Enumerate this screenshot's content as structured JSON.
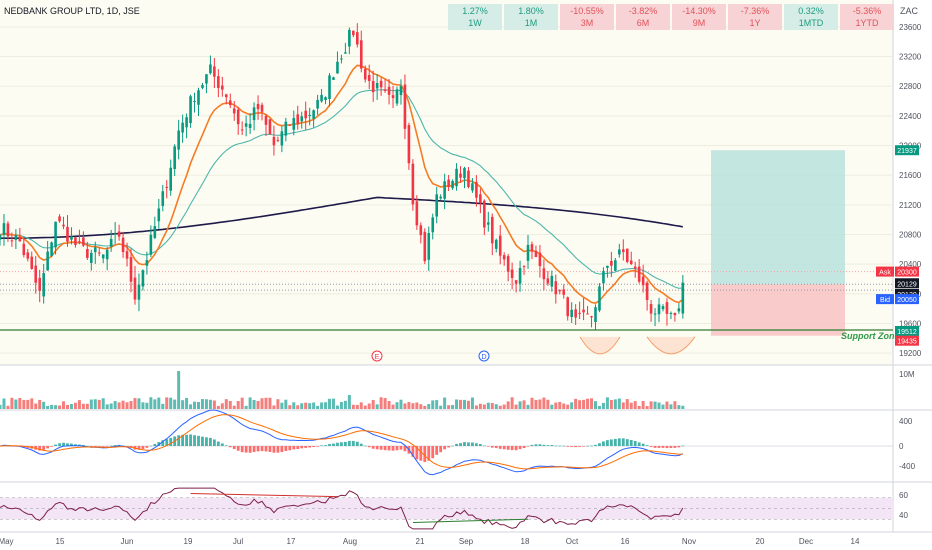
{
  "header": {
    "symbol_title": "NEDBANK GROUP LTD, 1D, JSE",
    "currency": "ZAC"
  },
  "performance": [
    {
      "value": "1.27%",
      "period": "1W",
      "dir": "pos"
    },
    {
      "value": "1.80%",
      "period": "1M",
      "dir": "pos"
    },
    {
      "value": "-10.55%",
      "period": "3M",
      "dir": "neg"
    },
    {
      "value": "-3.82%",
      "period": "6M",
      "dir": "neg"
    },
    {
      "value": "-14.30%",
      "period": "9M",
      "dir": "neg"
    },
    {
      "value": "-7.36%",
      "period": "1Y",
      "dir": "neg"
    },
    {
      "value": "0.32%",
      "period": "1MTD",
      "dir": "pos"
    },
    {
      "value": "-5.36%",
      "period": "1YTD",
      "dir": "neg"
    }
  ],
  "chart_data": {
    "type": "candlestick",
    "price_axis": {
      "ticks": [
        "23600",
        "23200",
        "22800",
        "22400",
        "22000",
        "21600",
        "21200",
        "20800",
        "20400",
        "20000",
        "19600",
        "19200"
      ],
      "ylim": [
        19040,
        23720
      ]
    },
    "date_axis": {
      "ticks": [
        "May",
        "15",
        "Jun",
        "19",
        "Jul",
        "17",
        "Aug",
        "21",
        "Sep",
        "18",
        "Oct",
        "16",
        "Nov",
        "20",
        "Dec",
        "14"
      ]
    },
    "price_labels": [
      {
        "name": "",
        "value": "21937",
        "color": "#089981"
      },
      {
        "name": "Ask",
        "value": "20300",
        "color": "#f23645"
      },
      {
        "name": "",
        "value": "20129",
        "color": "#131722"
      },
      {
        "name": "",
        "value": "20120",
        "color": "#131722"
      },
      {
        "name": "Bid",
        "value": "20050",
        "color": "#2962ff"
      },
      {
        "name": "",
        "value": "19512",
        "color": "#089981"
      },
      {
        "name": "",
        "value": "19435",
        "color": "#f23645"
      }
    ],
    "support": {
      "label": "Support Zone",
      "value": 19512
    },
    "position": {
      "entry": 20129,
      "target": 21937,
      "stop": 19435
    },
    "events": [
      "E",
      "D"
    ],
    "anchors": [
      [
        0,
        20900
      ],
      [
        5,
        20700
      ],
      [
        10,
        20000
      ],
      [
        14,
        21000
      ],
      [
        20,
        20600
      ],
      [
        26,
        20500
      ],
      [
        30,
        20800
      ],
      [
        34,
        20000
      ],
      [
        37,
        20500
      ],
      [
        41,
        21300
      ],
      [
        45,
        22200
      ],
      [
        49,
        22700
      ],
      [
        53,
        23000
      ],
      [
        57,
        22700
      ],
      [
        61,
        22200
      ],
      [
        65,
        22500
      ],
      [
        69,
        22000
      ],
      [
        73,
        22300
      ],
      [
        77,
        22400
      ],
      [
        81,
        22600
      ],
      [
        85,
        23150
      ],
      [
        89,
        23550
      ],
      [
        92,
        22900
      ],
      [
        96,
        22700
      ],
      [
        99,
        22550
      ],
      [
        101,
        22850
      ],
      [
        104,
        21300
      ],
      [
        107,
        20500
      ],
      [
        110,
        21300
      ],
      [
        113,
        21500
      ],
      [
        117,
        21700
      ],
      [
        119,
        21400
      ],
      [
        122,
        21000
      ],
      [
        126,
        20500
      ],
      [
        130,
        20200
      ],
      [
        133,
        20600
      ],
      [
        137,
        20300
      ],
      [
        141,
        20000
      ],
      [
        145,
        19600
      ],
      [
        149,
        19700
      ],
      [
        153,
        20400
      ],
      [
        157,
        20550
      ],
      [
        161,
        20200
      ],
      [
        164,
        19800
      ],
      [
        168,
        19700
      ],
      [
        170,
        19620
      ],
      [
        172,
        20120
      ]
    ],
    "volume_axis": {
      "ticks": [
        "10M"
      ]
    },
    "macd": {
      "axis_ticks": [
        "400",
        "0",
        "-400"
      ]
    },
    "rsi": {
      "axis_ticks": [
        "60",
        "40"
      ],
      "upper": 70,
      "lower": 30
    }
  },
  "colors": {
    "up": "#089981",
    "down": "#f23645",
    "ema_short": "#f57c25",
    "ema_mid": "#4db6ac",
    "ma_long": "#1e1b4b",
    "rsi_line": "#7e1f4a",
    "rsi_band": "#f3e5f5"
  }
}
